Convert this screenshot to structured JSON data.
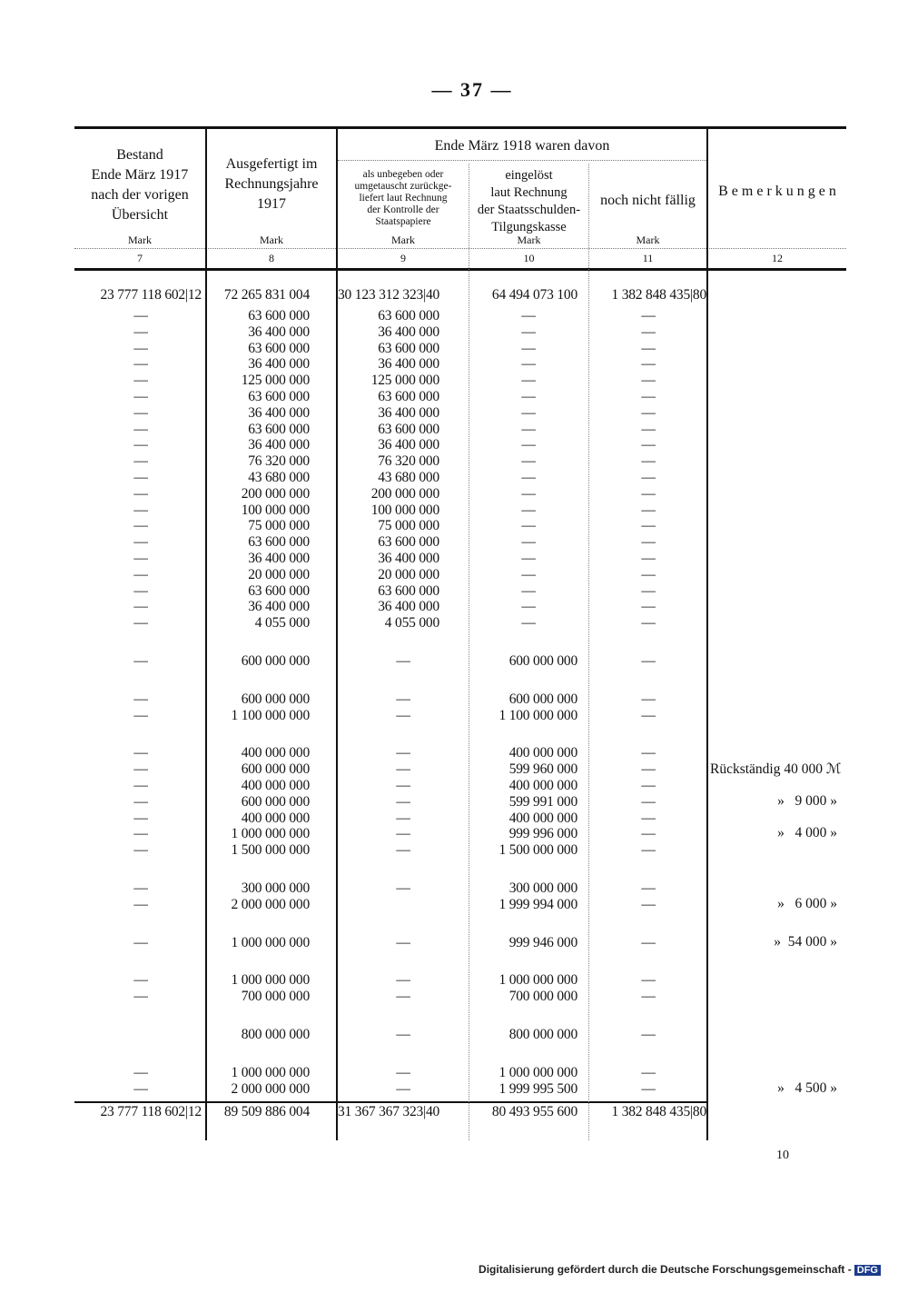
{
  "page_number": "— 37 —",
  "header": {
    "col7": [
      "Bestand",
      "Ende März 1917",
      "nach der vorigen",
      "Übersicht"
    ],
    "col8": [
      "Ausgefertigt im",
      "Rechnungsjahre",
      "1917"
    ],
    "group_title": "Ende März 1918 waren davon",
    "col9": [
      "als unbegeben oder",
      "umgetauscht zurückge-",
      "liefert laut Rechnung",
      "der Kontrolle der",
      "Staatspapiere"
    ],
    "col10": [
      "eingelöst",
      "laut Rechnung",
      "der Staatsschulden-",
      "Tilgungskasse"
    ],
    "col11": "noch nicht fällig",
    "col12": "B e m e r k u n g e n",
    "unit": "Mark",
    "col_numbers": [
      "7",
      "8",
      "9",
      "10",
      "11",
      "12"
    ]
  },
  "groups": [
    [
      [
        "23 777 118 602|12",
        "72 265 831 004",
        "30 123 312 323|40",
        "64 494 073 100",
        "1 382 848 435|80",
        ""
      ]
    ],
    [
      [
        "—",
        "63 600 000",
        "63 600 000",
        "—",
        "—",
        ""
      ],
      [
        "—",
        "36 400 000",
        "36 400 000",
        "—",
        "—",
        ""
      ],
      [
        "—",
        "63 600 000",
        "63 600 000",
        "—",
        "—",
        ""
      ],
      [
        "—",
        "36 400 000",
        "36 400 000",
        "—",
        "—",
        ""
      ],
      [
        "—",
        "125 000 000",
        "125 000 000",
        "—",
        "—",
        ""
      ],
      [
        "—",
        "63 600 000",
        "63 600 000",
        "—",
        "—",
        ""
      ],
      [
        "—",
        "36 400 000",
        "36 400 000",
        "—",
        "—",
        ""
      ],
      [
        "—",
        "63 600 000",
        "63 600 000",
        "—",
        "—",
        ""
      ],
      [
        "—",
        "36 400 000",
        "36 400 000",
        "—",
        "—",
        ""
      ],
      [
        "—",
        "76 320 000",
        "76 320 000",
        "—",
        "—",
        ""
      ],
      [
        "—",
        "43 680 000",
        "43 680 000",
        "—",
        "—",
        ""
      ],
      [
        "—",
        "200 000 000",
        "200 000 000",
        "—",
        "—",
        ""
      ],
      [
        "—",
        "100 000 000",
        "100 000 000",
        "—",
        "—",
        ""
      ],
      [
        "—",
        "75 000 000",
        "75 000 000",
        "—",
        "—",
        ""
      ],
      [
        "—",
        "63 600 000",
        "63 600 000",
        "—",
        "—",
        ""
      ],
      [
        "—",
        "36 400 000",
        "36 400 000",
        "—",
        "—",
        ""
      ],
      [
        "—",
        "20 000 000",
        "20 000 000",
        "—",
        "—",
        ""
      ],
      [
        "—",
        "63 600 000",
        "63 600 000",
        "—",
        "—",
        ""
      ],
      [
        "—",
        "36 400 000",
        "36 400 000",
        "—",
        "—",
        ""
      ],
      [
        "—",
        "4 055 000",
        "4 055 000",
        "—",
        "—",
        ""
      ]
    ],
    [
      [
        "—",
        "600 000 000",
        "—",
        "600 000 000",
        "—",
        ""
      ]
    ],
    [
      [
        "—",
        "600 000 000",
        "—",
        "600 000 000",
        "—",
        ""
      ],
      [
        "—",
        "1 100 000 000",
        "—",
        "1 100 000 000",
        "—",
        ""
      ]
    ],
    [
      [
        "—",
        "400 000 000",
        "—",
        "400 000 000",
        "—",
        ""
      ],
      [
        "—",
        "600 000 000",
        "—",
        "599 960 000",
        "—",
        "Rückständig 40 000 ℳ"
      ],
      [
        "—",
        "400 000 000",
        "—",
        "400 000 000",
        "—",
        ""
      ],
      [
        "—",
        "600 000 000",
        "—",
        "599 991 000",
        "—",
        "»   9 000 »"
      ],
      [
        "—",
        "400 000 000",
        "—",
        "400 000 000",
        "—",
        ""
      ],
      [
        "—",
        "1 000 000 000",
        "—",
        "999 996 000",
        "—",
        "»   4 000 »"
      ],
      [
        "—",
        "1 500 000 000",
        "—",
        "1 500 000 000",
        "—",
        ""
      ]
    ],
    [
      [
        "—",
        "300 000 000",
        "—",
        "300 000 000",
        "—",
        ""
      ],
      [
        "—",
        "2 000 000 000",
        "",
        "1 999 994 000",
        "—",
        "»   6 000 »"
      ]
    ],
    [
      [
        "—",
        "1 000 000 000",
        "—",
        "999 946 000",
        "—",
        "»  54 000 »"
      ]
    ],
    [
      [
        "—",
        "1 000 000 000",
        "—",
        "1 000 000 000",
        "—",
        ""
      ],
      [
        "—",
        "700 000 000",
        "—",
        "700 000 000",
        "—",
        ""
      ]
    ],
    [
      [
        "",
        "800 000 000",
        "—",
        "800 000 000",
        "—",
        ""
      ]
    ],
    [
      [
        "—",
        "1 000 000 000",
        "—",
        "1 000 000 000",
        "—",
        ""
      ],
      [
        "—",
        "2 000 000 000",
        "—",
        "1 999 995 500",
        "—",
        "»   4 500 »"
      ]
    ]
  ],
  "totals": [
    "23 777 118 602|12",
    "89 509 886 004",
    "31 367 367 323|40",
    "80 493 955 600",
    "1 382 848 435|80"
  ],
  "sheet_number": "10",
  "footer": {
    "text": "Digitalisierung gefördert durch die Deutsche Forschungsgemeinschaft -",
    "logo": "DFG"
  }
}
